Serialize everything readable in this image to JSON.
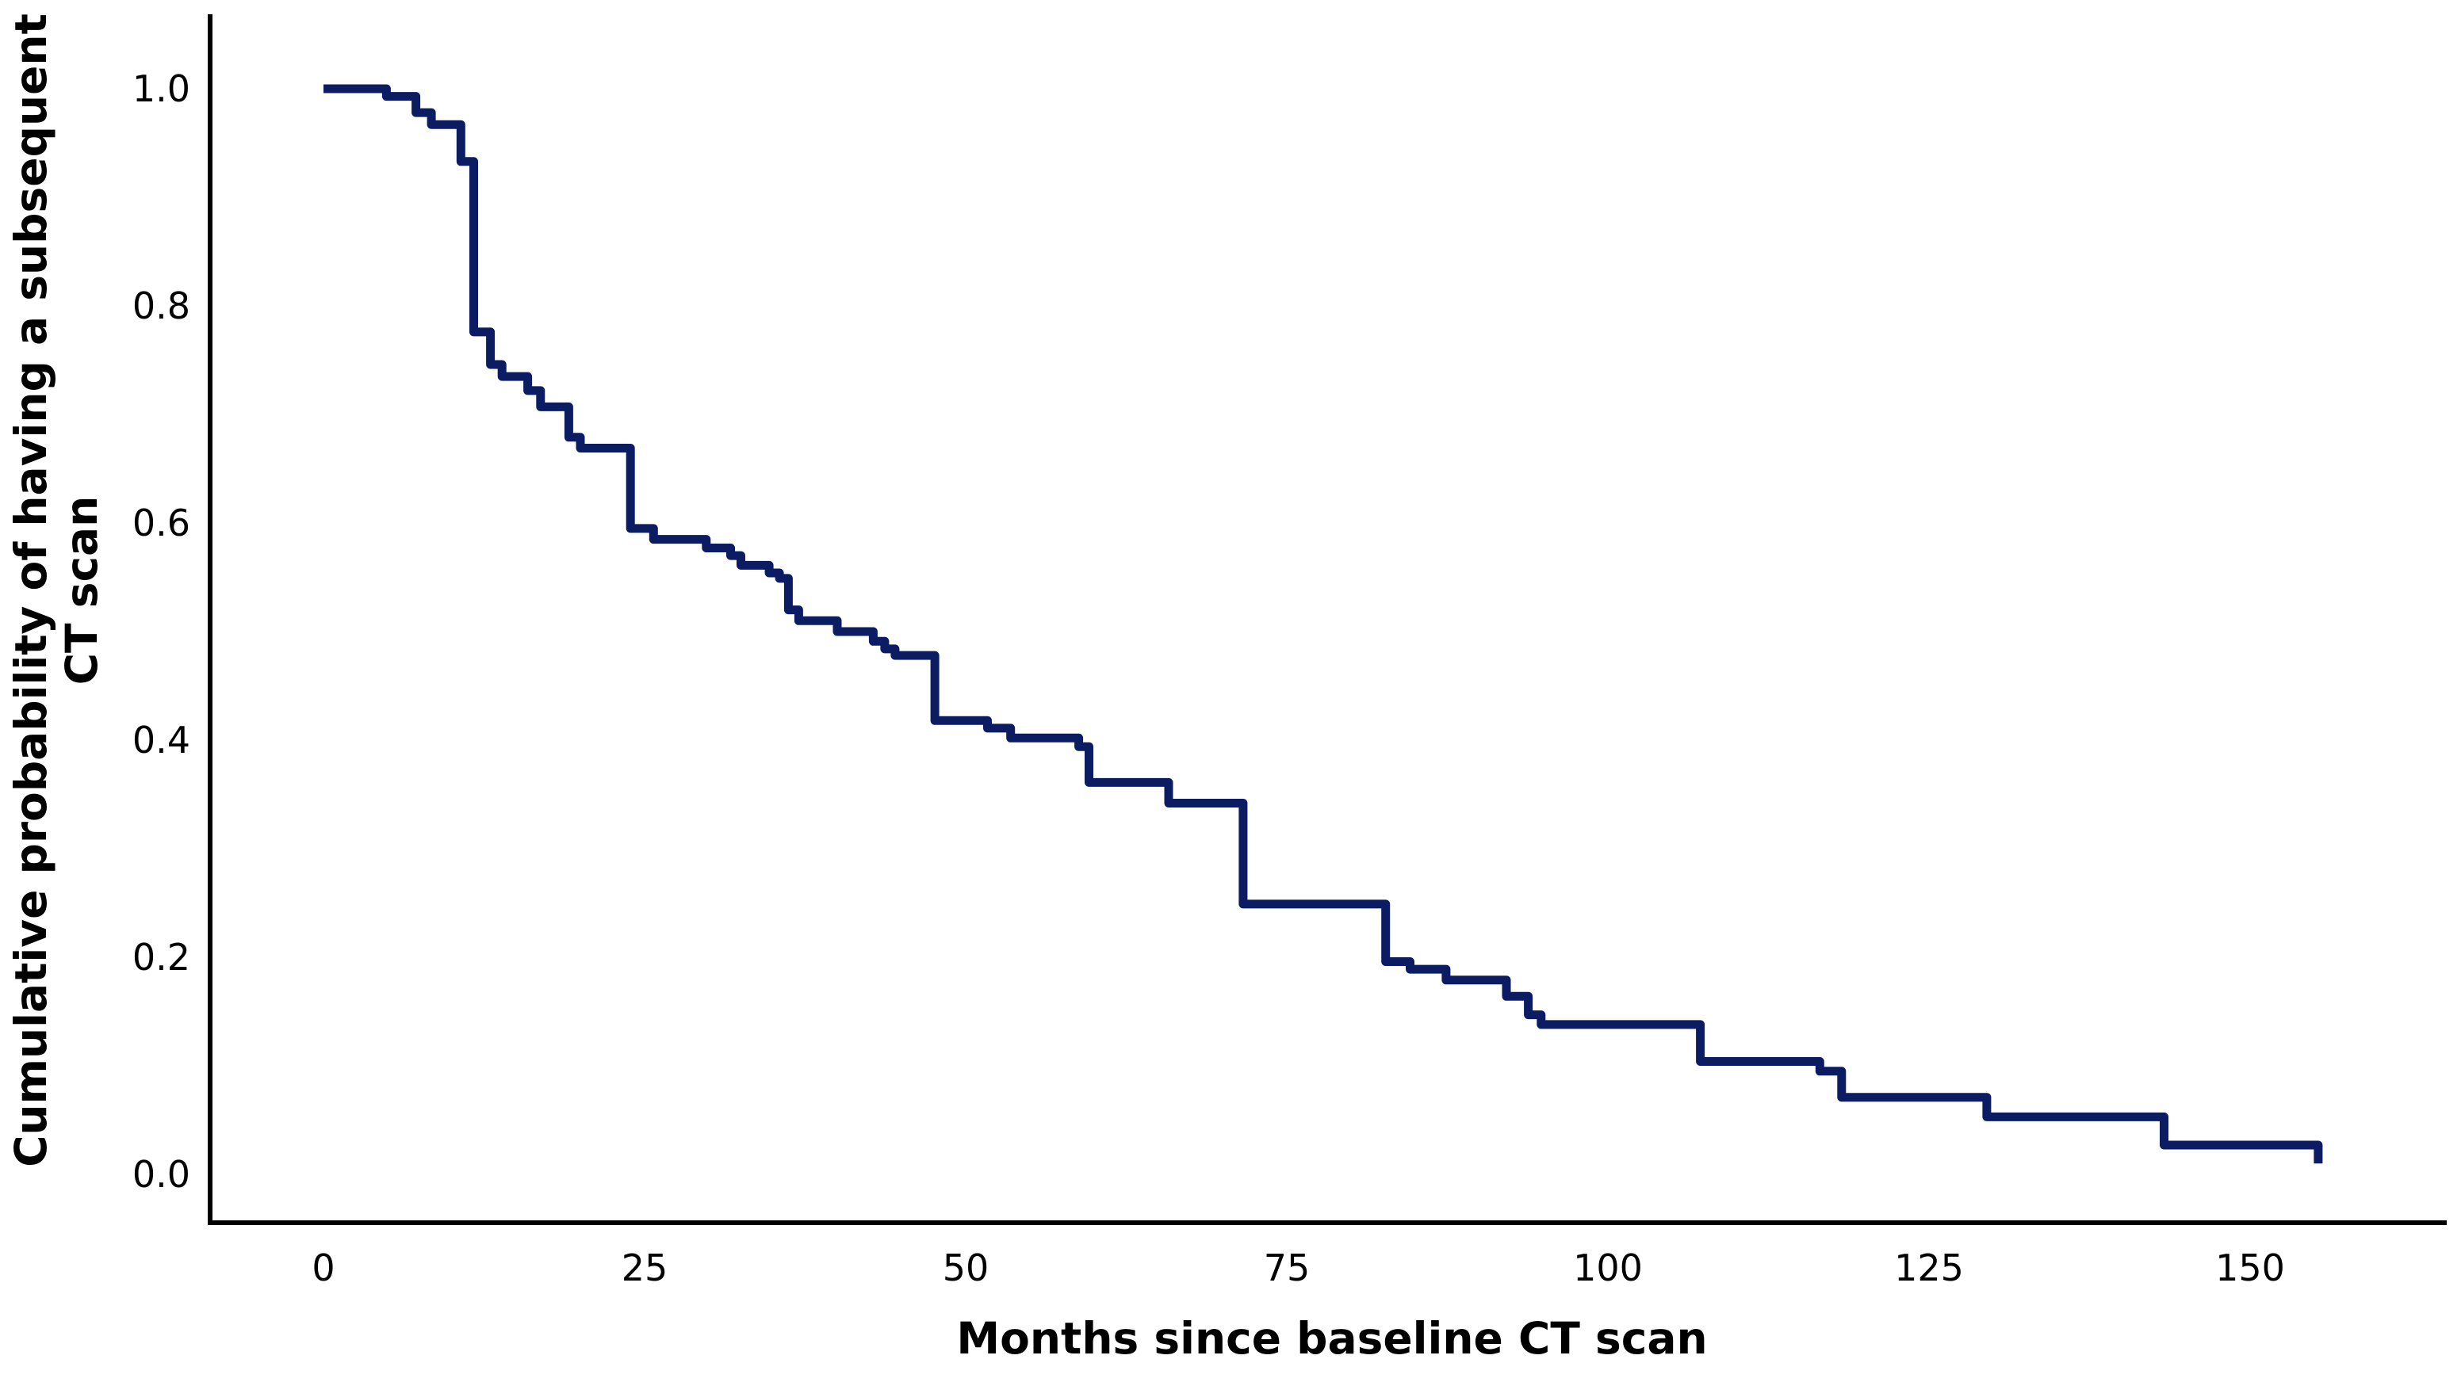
{
  "figure_type": "kaplan-meier-survival-curve",
  "chart_data": {
    "type": "line",
    "subtype": "step-function-survival",
    "title": "",
    "xlabel": "Months since baseline CT scan",
    "ylabel": "Cumulative probability of having a subsequent CT scan",
    "ylabel_line1": "Cumulative probability of having a subsequent",
    "ylabel_line2": "CT scan",
    "x_ticks": [
      0,
      25,
      50,
      75,
      100,
      125,
      150
    ],
    "y_ticks": [
      1.0,
      0.8,
      0.6,
      0.4,
      0.2,
      0.0
    ],
    "xlim": [
      0,
      160
    ],
    "ylim": [
      0.0,
      1.0
    ],
    "grid": false,
    "legend": "none",
    "line_color": "#0B1C63",
    "axis_color": "#000000",
    "start_point": {
      "t": 0,
      "p": 1.0
    },
    "steps": [
      {
        "t": 4.9,
        "p": 0.993
      },
      {
        "t": 7.2,
        "p": 0.978
      },
      {
        "t": 8.4,
        "p": 0.967
      },
      {
        "t": 10.7,
        "p": 0.933
      },
      {
        "t": 11.7,
        "p": 0.776
      },
      {
        "t": 13.0,
        "p": 0.746
      },
      {
        "t": 13.9,
        "p": 0.735
      },
      {
        "t": 15.9,
        "p": 0.722
      },
      {
        "t": 16.9,
        "p": 0.707
      },
      {
        "t": 19.1,
        "p": 0.679
      },
      {
        "t": 20.0,
        "p": 0.669
      },
      {
        "t": 23.9,
        "p": 0.595
      },
      {
        "t": 25.7,
        "p": 0.585
      },
      {
        "t": 29.8,
        "p": 0.577
      },
      {
        "t": 31.7,
        "p": 0.57
      },
      {
        "t": 32.5,
        "p": 0.561
      },
      {
        "t": 34.7,
        "p": 0.554
      },
      {
        "t": 35.5,
        "p": 0.549
      },
      {
        "t": 36.2,
        "p": 0.52
      },
      {
        "t": 37.0,
        "p": 0.51
      },
      {
        "t": 40.0,
        "p": 0.5
      },
      {
        "t": 42.8,
        "p": 0.491
      },
      {
        "t": 43.7,
        "p": 0.484
      },
      {
        "t": 44.5,
        "p": 0.478
      },
      {
        "t": 47.6,
        "p": 0.418
      },
      {
        "t": 51.7,
        "p": 0.411
      },
      {
        "t": 53.5,
        "p": 0.402
      },
      {
        "t": 58.8,
        "p": 0.394
      },
      {
        "t": 59.6,
        "p": 0.361
      },
      {
        "t": 65.8,
        "p": 0.342
      },
      {
        "t": 71.6,
        "p": 0.249
      },
      {
        "t": 82.7,
        "p": 0.196
      },
      {
        "t": 84.6,
        "p": 0.189
      },
      {
        "t": 87.4,
        "p": 0.179
      },
      {
        "t": 92.1,
        "p": 0.164
      },
      {
        "t": 93.8,
        "p": 0.147
      },
      {
        "t": 94.8,
        "p": 0.138
      },
      {
        "t": 107.2,
        "p": 0.104
      },
      {
        "t": 116.5,
        "p": 0.095
      },
      {
        "t": 118.2,
        "p": 0.071
      },
      {
        "t": 129.5,
        "p": 0.053
      },
      {
        "t": 143.3,
        "p": 0.027
      },
      {
        "t": 155.3,
        "p": 0.01
      }
    ]
  }
}
